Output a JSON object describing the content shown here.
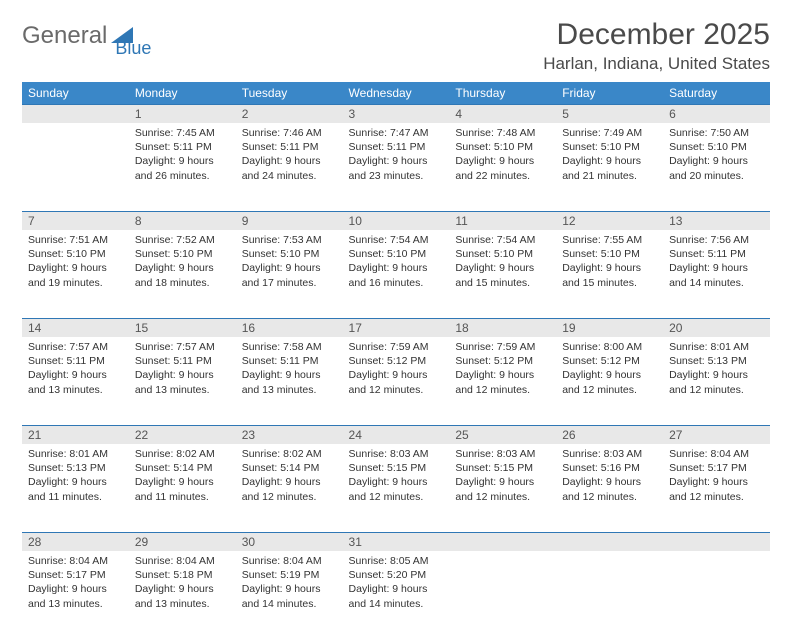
{
  "logo": {
    "text1": "General",
    "text2": "Blue"
  },
  "title": "December 2025",
  "location": "Harlan, Indiana, United States",
  "theme": {
    "header_bg": "#3a87c8",
    "header_fg": "#ffffff",
    "daynum_bg": "#e8e8e8",
    "daynum_border": "#2f77b5",
    "body_color": "#333333",
    "logo_gray": "#6a6a6a",
    "logo_blue": "#2f77b5"
  },
  "weekdays": [
    "Sunday",
    "Monday",
    "Tuesday",
    "Wednesday",
    "Thursday",
    "Friday",
    "Saturday"
  ],
  "weeks": [
    {
      "nums": [
        "",
        "1",
        "2",
        "3",
        "4",
        "5",
        "6"
      ],
      "cells": [
        {
          "sunrise": "",
          "sunset": "",
          "daylight1": "",
          "daylight2": ""
        },
        {
          "sunrise": "Sunrise: 7:45 AM",
          "sunset": "Sunset: 5:11 PM",
          "daylight1": "Daylight: 9 hours",
          "daylight2": "and 26 minutes."
        },
        {
          "sunrise": "Sunrise: 7:46 AM",
          "sunset": "Sunset: 5:11 PM",
          "daylight1": "Daylight: 9 hours",
          "daylight2": "and 24 minutes."
        },
        {
          "sunrise": "Sunrise: 7:47 AM",
          "sunset": "Sunset: 5:11 PM",
          "daylight1": "Daylight: 9 hours",
          "daylight2": "and 23 minutes."
        },
        {
          "sunrise": "Sunrise: 7:48 AM",
          "sunset": "Sunset: 5:10 PM",
          "daylight1": "Daylight: 9 hours",
          "daylight2": "and 22 minutes."
        },
        {
          "sunrise": "Sunrise: 7:49 AM",
          "sunset": "Sunset: 5:10 PM",
          "daylight1": "Daylight: 9 hours",
          "daylight2": "and 21 minutes."
        },
        {
          "sunrise": "Sunrise: 7:50 AM",
          "sunset": "Sunset: 5:10 PM",
          "daylight1": "Daylight: 9 hours",
          "daylight2": "and 20 minutes."
        }
      ]
    },
    {
      "nums": [
        "7",
        "8",
        "9",
        "10",
        "11",
        "12",
        "13"
      ],
      "cells": [
        {
          "sunrise": "Sunrise: 7:51 AM",
          "sunset": "Sunset: 5:10 PM",
          "daylight1": "Daylight: 9 hours",
          "daylight2": "and 19 minutes."
        },
        {
          "sunrise": "Sunrise: 7:52 AM",
          "sunset": "Sunset: 5:10 PM",
          "daylight1": "Daylight: 9 hours",
          "daylight2": "and 18 minutes."
        },
        {
          "sunrise": "Sunrise: 7:53 AM",
          "sunset": "Sunset: 5:10 PM",
          "daylight1": "Daylight: 9 hours",
          "daylight2": "and 17 minutes."
        },
        {
          "sunrise": "Sunrise: 7:54 AM",
          "sunset": "Sunset: 5:10 PM",
          "daylight1": "Daylight: 9 hours",
          "daylight2": "and 16 minutes."
        },
        {
          "sunrise": "Sunrise: 7:54 AM",
          "sunset": "Sunset: 5:10 PM",
          "daylight1": "Daylight: 9 hours",
          "daylight2": "and 15 minutes."
        },
        {
          "sunrise": "Sunrise: 7:55 AM",
          "sunset": "Sunset: 5:10 PM",
          "daylight1": "Daylight: 9 hours",
          "daylight2": "and 15 minutes."
        },
        {
          "sunrise": "Sunrise: 7:56 AM",
          "sunset": "Sunset: 5:11 PM",
          "daylight1": "Daylight: 9 hours",
          "daylight2": "and 14 minutes."
        }
      ]
    },
    {
      "nums": [
        "14",
        "15",
        "16",
        "17",
        "18",
        "19",
        "20"
      ],
      "cells": [
        {
          "sunrise": "Sunrise: 7:57 AM",
          "sunset": "Sunset: 5:11 PM",
          "daylight1": "Daylight: 9 hours",
          "daylight2": "and 13 minutes."
        },
        {
          "sunrise": "Sunrise: 7:57 AM",
          "sunset": "Sunset: 5:11 PM",
          "daylight1": "Daylight: 9 hours",
          "daylight2": "and 13 minutes."
        },
        {
          "sunrise": "Sunrise: 7:58 AM",
          "sunset": "Sunset: 5:11 PM",
          "daylight1": "Daylight: 9 hours",
          "daylight2": "and 13 minutes."
        },
        {
          "sunrise": "Sunrise: 7:59 AM",
          "sunset": "Sunset: 5:12 PM",
          "daylight1": "Daylight: 9 hours",
          "daylight2": "and 12 minutes."
        },
        {
          "sunrise": "Sunrise: 7:59 AM",
          "sunset": "Sunset: 5:12 PM",
          "daylight1": "Daylight: 9 hours",
          "daylight2": "and 12 minutes."
        },
        {
          "sunrise": "Sunrise: 8:00 AM",
          "sunset": "Sunset: 5:12 PM",
          "daylight1": "Daylight: 9 hours",
          "daylight2": "and 12 minutes."
        },
        {
          "sunrise": "Sunrise: 8:01 AM",
          "sunset": "Sunset: 5:13 PM",
          "daylight1": "Daylight: 9 hours",
          "daylight2": "and 12 minutes."
        }
      ]
    },
    {
      "nums": [
        "21",
        "22",
        "23",
        "24",
        "25",
        "26",
        "27"
      ],
      "cells": [
        {
          "sunrise": "Sunrise: 8:01 AM",
          "sunset": "Sunset: 5:13 PM",
          "daylight1": "Daylight: 9 hours",
          "daylight2": "and 11 minutes."
        },
        {
          "sunrise": "Sunrise: 8:02 AM",
          "sunset": "Sunset: 5:14 PM",
          "daylight1": "Daylight: 9 hours",
          "daylight2": "and 11 minutes."
        },
        {
          "sunrise": "Sunrise: 8:02 AM",
          "sunset": "Sunset: 5:14 PM",
          "daylight1": "Daylight: 9 hours",
          "daylight2": "and 12 minutes."
        },
        {
          "sunrise": "Sunrise: 8:03 AM",
          "sunset": "Sunset: 5:15 PM",
          "daylight1": "Daylight: 9 hours",
          "daylight2": "and 12 minutes."
        },
        {
          "sunrise": "Sunrise: 8:03 AM",
          "sunset": "Sunset: 5:15 PM",
          "daylight1": "Daylight: 9 hours",
          "daylight2": "and 12 minutes."
        },
        {
          "sunrise": "Sunrise: 8:03 AM",
          "sunset": "Sunset: 5:16 PM",
          "daylight1": "Daylight: 9 hours",
          "daylight2": "and 12 minutes."
        },
        {
          "sunrise": "Sunrise: 8:04 AM",
          "sunset": "Sunset: 5:17 PM",
          "daylight1": "Daylight: 9 hours",
          "daylight2": "and 12 minutes."
        }
      ]
    },
    {
      "nums": [
        "28",
        "29",
        "30",
        "31",
        "",
        "",
        ""
      ],
      "cells": [
        {
          "sunrise": "Sunrise: 8:04 AM",
          "sunset": "Sunset: 5:17 PM",
          "daylight1": "Daylight: 9 hours",
          "daylight2": "and 13 minutes."
        },
        {
          "sunrise": "Sunrise: 8:04 AM",
          "sunset": "Sunset: 5:18 PM",
          "daylight1": "Daylight: 9 hours",
          "daylight2": "and 13 minutes."
        },
        {
          "sunrise": "Sunrise: 8:04 AM",
          "sunset": "Sunset: 5:19 PM",
          "daylight1": "Daylight: 9 hours",
          "daylight2": "and 14 minutes."
        },
        {
          "sunrise": "Sunrise: 8:05 AM",
          "sunset": "Sunset: 5:20 PM",
          "daylight1": "Daylight: 9 hours",
          "daylight2": "and 14 minutes."
        },
        {
          "sunrise": "",
          "sunset": "",
          "daylight1": "",
          "daylight2": ""
        },
        {
          "sunrise": "",
          "sunset": "",
          "daylight1": "",
          "daylight2": ""
        },
        {
          "sunrise": "",
          "sunset": "",
          "daylight1": "",
          "daylight2": ""
        }
      ]
    }
  ]
}
